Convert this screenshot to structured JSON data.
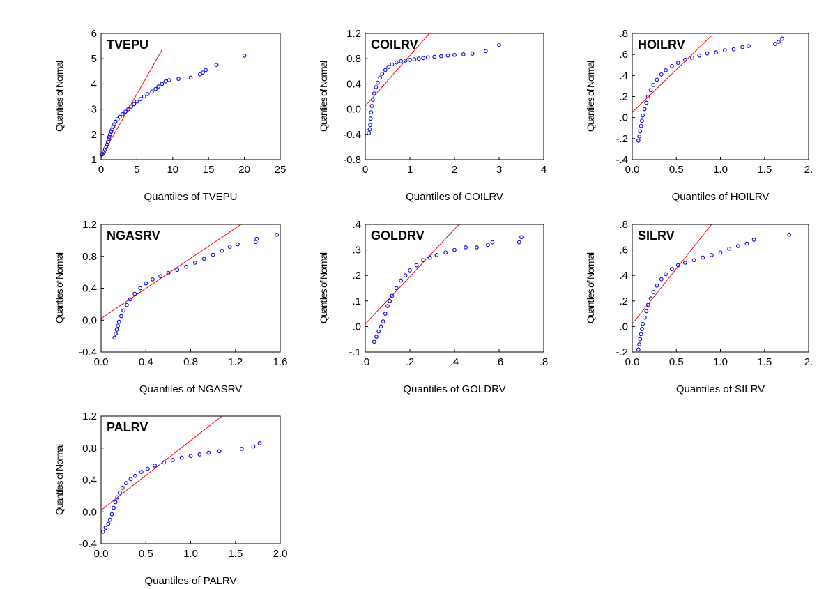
{
  "colors": {
    "points": "#1010e6",
    "ref_line": "#ff0000",
    "frame": "#000000"
  },
  "chart_data": [
    {
      "type": "scatter",
      "title": "TVEPU",
      "xlabel": "Quantiles of TVEPU",
      "ylabel": "Quantiles of Normal",
      "xlim": [
        0,
        25
      ],
      "ylim": [
        1,
        6
      ],
      "xticks": [
        0,
        5,
        10,
        15,
        20,
        25
      ],
      "xtick_labels": [
        "0",
        "5",
        "10",
        "15",
        "20",
        "25"
      ],
      "yticks": [
        1,
        2,
        3,
        4,
        5,
        6
      ],
      "ytick_labels": [
        "1",
        "2",
        "3",
        "4",
        "5",
        "6"
      ],
      "ref_line": [
        [
          0,
          1.1
        ],
        [
          8.5,
          5.35
        ]
      ],
      "points": [
        [
          0.05,
          1.2
        ],
        [
          0.2,
          1.22
        ],
        [
          0.4,
          1.3
        ],
        [
          0.55,
          1.4
        ],
        [
          0.7,
          1.5
        ],
        [
          0.85,
          1.6
        ],
        [
          0.95,
          1.7
        ],
        [
          1.05,
          1.8
        ],
        [
          1.15,
          1.9
        ],
        [
          1.25,
          2.0
        ],
        [
          1.4,
          2.1
        ],
        [
          1.55,
          2.2
        ],
        [
          1.7,
          2.3
        ],
        [
          1.85,
          2.4
        ],
        [
          2.0,
          2.5
        ],
        [
          2.3,
          2.6
        ],
        [
          2.6,
          2.7
        ],
        [
          3.0,
          2.8
        ],
        [
          3.4,
          2.9
        ],
        [
          3.8,
          3.0
        ],
        [
          4.2,
          3.1
        ],
        [
          4.6,
          3.2
        ],
        [
          5.0,
          3.3
        ],
        [
          5.5,
          3.4
        ],
        [
          6.0,
          3.5
        ],
        [
          6.5,
          3.6
        ],
        [
          7.1,
          3.7
        ],
        [
          7.6,
          3.8
        ],
        [
          8.0,
          3.9
        ],
        [
          8.5,
          4.0
        ],
        [
          9.0,
          4.1
        ],
        [
          9.5,
          4.15
        ],
        [
          10.8,
          4.2
        ],
        [
          12.5,
          4.25
        ],
        [
          13.8,
          4.38
        ],
        [
          14.2,
          4.45
        ],
        [
          14.6,
          4.55
        ],
        [
          16.1,
          4.75
        ],
        [
          20.0,
          5.12
        ]
      ]
    },
    {
      "type": "scatter",
      "title": "COILRV",
      "xlabel": "Quantiles of COILRV",
      "ylabel": "Quantiles of Normal",
      "xlim": [
        0,
        4
      ],
      "ylim": [
        -0.8,
        1.2
      ],
      "xticks": [
        0,
        1,
        2,
        3,
        4
      ],
      "xtick_labels": [
        "0",
        "1",
        "2",
        "3",
        "4"
      ],
      "yticks": [
        -0.8,
        -0.4,
        0.0,
        0.4,
        0.8,
        1.2
      ],
      "ytick_labels": [
        "-0.8",
        "-0.4",
        "0.0",
        "0.4",
        "0.8",
        "1.2"
      ],
      "ref_line": [
        [
          0,
          0.05
        ],
        [
          1.5,
          1.25
        ]
      ],
      "points": [
        [
          0.08,
          -0.38
        ],
        [
          0.1,
          -0.32
        ],
        [
          0.11,
          -0.25
        ],
        [
          0.12,
          -0.15
        ],
        [
          0.13,
          -0.05
        ],
        [
          0.15,
          0.05
        ],
        [
          0.17,
          0.15
        ],
        [
          0.2,
          0.25
        ],
        [
          0.24,
          0.35
        ],
        [
          0.28,
          0.42
        ],
        [
          0.33,
          0.5
        ],
        [
          0.38,
          0.56
        ],
        [
          0.45,
          0.62
        ],
        [
          0.52,
          0.67
        ],
        [
          0.6,
          0.71
        ],
        [
          0.7,
          0.74
        ],
        [
          0.8,
          0.76
        ],
        [
          0.9,
          0.77
        ],
        [
          1.0,
          0.78
        ],
        [
          1.1,
          0.79
        ],
        [
          1.2,
          0.8
        ],
        [
          1.3,
          0.81
        ],
        [
          1.4,
          0.82
        ],
        [
          1.55,
          0.83
        ],
        [
          1.7,
          0.84
        ],
        [
          1.85,
          0.85
        ],
        [
          2.0,
          0.86
        ],
        [
          2.2,
          0.87
        ],
        [
          2.4,
          0.88
        ],
        [
          2.7,
          0.92
        ],
        [
          3.0,
          1.02
        ]
      ]
    },
    {
      "type": "scatter",
      "title": "HOILRV",
      "xlabel": "Quantiles of HOILRV",
      "ylabel": "Quantiles of Normal",
      "xlim": [
        0,
        2
      ],
      "ylim": [
        -0.4,
        0.8
      ],
      "xticks": [
        0,
        0.5,
        1.0,
        1.5,
        2.0
      ],
      "xtick_labels": [
        "0.0",
        "0.5",
        "1.0",
        "1.5",
        "2."
      ],
      "yticks": [
        -0.4,
        -0.2,
        0.0,
        0.2,
        0.4,
        0.6,
        0.8
      ],
      "ytick_labels": [
        "-.4",
        "-.2",
        ".0",
        ".2",
        ".4",
        ".6",
        ".8"
      ],
      "ref_line": [
        [
          0,
          0.05
        ],
        [
          0.9,
          0.78
        ]
      ],
      "points": [
        [
          0.07,
          -0.22
        ],
        [
          0.08,
          -0.18
        ],
        [
          0.09,
          -0.13
        ],
        [
          0.1,
          -0.08
        ],
        [
          0.11,
          -0.03
        ],
        [
          0.12,
          0.02
        ],
        [
          0.14,
          0.08
        ],
        [
          0.16,
          0.14
        ],
        [
          0.18,
          0.2
        ],
        [
          0.21,
          0.26
        ],
        [
          0.24,
          0.31
        ],
        [
          0.28,
          0.36
        ],
        [
          0.33,
          0.41
        ],
        [
          0.38,
          0.45
        ],
        [
          0.45,
          0.49
        ],
        [
          0.52,
          0.52
        ],
        [
          0.6,
          0.55
        ],
        [
          0.68,
          0.57
        ],
        [
          0.76,
          0.59
        ],
        [
          0.85,
          0.61
        ],
        [
          0.95,
          0.62
        ],
        [
          1.05,
          0.64
        ],
        [
          1.15,
          0.65
        ],
        [
          1.25,
          0.67
        ],
        [
          1.32,
          0.68
        ],
        [
          1.62,
          0.7
        ],
        [
          1.66,
          0.72
        ],
        [
          1.7,
          0.75
        ]
      ]
    },
    {
      "type": "scatter",
      "title": "NGASRV",
      "xlabel": "Quantiles of NGASRV",
      "ylabel": "Quantiles of Normal",
      "xlim": [
        0,
        1.6
      ],
      "ylim": [
        -0.4,
        1.2
      ],
      "xticks": [
        0,
        0.4,
        0.8,
        1.2,
        1.6
      ],
      "xtick_labels": [
        "0.0",
        "0.4",
        "0.8",
        "1.2",
        "1.6"
      ],
      "yticks": [
        -0.4,
        0.0,
        0.4,
        0.8,
        1.2
      ],
      "ytick_labels": [
        "-0.4",
        "0.0",
        "0.4",
        "0.8",
        "1.2"
      ],
      "ref_line": [
        [
          0,
          0.02
        ],
        [
          1.25,
          1.2
        ]
      ],
      "points": [
        [
          0.12,
          -0.22
        ],
        [
          0.13,
          -0.17
        ],
        [
          0.14,
          -0.12
        ],
        [
          0.15,
          -0.07
        ],
        [
          0.16,
          -0.02
        ],
        [
          0.18,
          0.05
        ],
        [
          0.2,
          0.12
        ],
        [
          0.23,
          0.19
        ],
        [
          0.26,
          0.26
        ],
        [
          0.3,
          0.33
        ],
        [
          0.35,
          0.4
        ],
        [
          0.4,
          0.46
        ],
        [
          0.46,
          0.51
        ],
        [
          0.53,
          0.55
        ],
        [
          0.6,
          0.59
        ],
        [
          0.68,
          0.63
        ],
        [
          0.76,
          0.67
        ],
        [
          0.84,
          0.72
        ],
        [
          0.92,
          0.77
        ],
        [
          1.0,
          0.82
        ],
        [
          1.08,
          0.87
        ],
        [
          1.15,
          0.92
        ],
        [
          1.22,
          0.95
        ],
        [
          1.38,
          0.98
        ],
        [
          1.39,
          1.02
        ],
        [
          1.57,
          1.07
        ]
      ]
    },
    {
      "type": "scatter",
      "title": "GOLDRV",
      "xlabel": "Quantiles of GOLDRV",
      "ylabel": "Quantiles of Normal",
      "xlim": [
        0,
        0.8
      ],
      "ylim": [
        -0.1,
        0.4
      ],
      "xticks": [
        0,
        0.2,
        0.4,
        0.6,
        0.8
      ],
      "xtick_labels": [
        ".0",
        ".2",
        ".4",
        ".6",
        ".8"
      ],
      "yticks": [
        -0.1,
        0.0,
        0.1,
        0.2,
        0.3,
        0.4
      ],
      "ytick_labels": [
        "-.1",
        ".0",
        ".1",
        ".2",
        ".3",
        ".4"
      ],
      "ref_line": [
        [
          0,
          0.01
        ],
        [
          0.42,
          0.4
        ]
      ],
      "points": [
        [
          0.04,
          -0.06
        ],
        [
          0.05,
          -0.04
        ],
        [
          0.06,
          -0.02
        ],
        [
          0.07,
          0.0
        ],
        [
          0.08,
          0.02
        ],
        [
          0.09,
          0.05
        ],
        [
          0.1,
          0.08
        ],
        [
          0.11,
          0.1
        ],
        [
          0.12,
          0.12
        ],
        [
          0.14,
          0.15
        ],
        [
          0.16,
          0.18
        ],
        [
          0.18,
          0.2
        ],
        [
          0.2,
          0.22
        ],
        [
          0.23,
          0.24
        ],
        [
          0.26,
          0.26
        ],
        [
          0.29,
          0.27
        ],
        [
          0.32,
          0.28
        ],
        [
          0.36,
          0.29
        ],
        [
          0.4,
          0.3
        ],
        [
          0.45,
          0.31
        ],
        [
          0.5,
          0.31
        ],
        [
          0.55,
          0.32
        ],
        [
          0.57,
          0.33
        ],
        [
          0.69,
          0.33
        ],
        [
          0.7,
          0.35
        ]
      ]
    },
    {
      "type": "scatter",
      "title": "SILRV",
      "xlabel": "Quantiles of SILRV",
      "ylabel": "Quantiles of Normal",
      "xlim": [
        0,
        2
      ],
      "ylim": [
        -0.2,
        0.8
      ],
      "xticks": [
        0,
        0.5,
        1.0,
        1.5,
        2.0
      ],
      "xtick_labels": [
        "0.0",
        "0.5",
        "1.0",
        "1.5",
        "2."
      ],
      "yticks": [
        -0.2,
        0.0,
        0.2,
        0.4,
        0.6,
        0.8
      ],
      "ytick_labels": [
        "-.2",
        ".0",
        ".2",
        ".4",
        ".6",
        ".8"
      ],
      "ref_line": [
        [
          0,
          0.02
        ],
        [
          0.9,
          0.8
        ]
      ],
      "points": [
        [
          0.07,
          -0.18
        ],
        [
          0.08,
          -0.14
        ],
        [
          0.09,
          -0.1
        ],
        [
          0.1,
          -0.06
        ],
        [
          0.11,
          -0.02
        ],
        [
          0.12,
          0.02
        ],
        [
          0.14,
          0.07
        ],
        [
          0.16,
          0.12
        ],
        [
          0.18,
          0.17
        ],
        [
          0.21,
          0.22
        ],
        [
          0.24,
          0.27
        ],
        [
          0.28,
          0.32
        ],
        [
          0.33,
          0.37
        ],
        [
          0.38,
          0.41
        ],
        [
          0.45,
          0.45
        ],
        [
          0.52,
          0.48
        ],
        [
          0.6,
          0.5
        ],
        [
          0.7,
          0.52
        ],
        [
          0.8,
          0.54
        ],
        [
          0.9,
          0.56
        ],
        [
          1.0,
          0.58
        ],
        [
          1.1,
          0.61
        ],
        [
          1.2,
          0.63
        ],
        [
          1.3,
          0.65
        ],
        [
          1.38,
          0.68
        ],
        [
          1.78,
          0.72
        ]
      ]
    },
    {
      "type": "scatter",
      "title": "PALRV",
      "xlabel": "Quantiles of PALRV",
      "ylabel": "Quantiles of Normal",
      "xlim": [
        0,
        2
      ],
      "ylim": [
        -0.4,
        1.2
      ],
      "xticks": [
        0,
        0.5,
        1.0,
        1.5,
        2.0
      ],
      "xtick_labels": [
        "0.0",
        "0.5",
        "1.0",
        "1.5",
        "2.0"
      ],
      "yticks": [
        -0.4,
        0.0,
        0.4,
        0.8,
        1.2
      ],
      "ytick_labels": [
        "-0.4",
        "0.0",
        "0.4",
        "0.8",
        "1.2"
      ],
      "ref_line": [
        [
          0,
          0.02
        ],
        [
          1.35,
          1.2
        ]
      ],
      "points": [
        [
          0.02,
          -0.25
        ],
        [
          0.05,
          -0.2
        ],
        [
          0.08,
          -0.15
        ],
        [
          0.1,
          -0.1
        ],
        [
          0.12,
          -0.03
        ],
        [
          0.14,
          0.05
        ],
        [
          0.16,
          0.12
        ],
        [
          0.18,
          0.18
        ],
        [
          0.21,
          0.24
        ],
        [
          0.24,
          0.3
        ],
        [
          0.28,
          0.36
        ],
        [
          0.33,
          0.41
        ],
        [
          0.38,
          0.45
        ],
        [
          0.45,
          0.5
        ],
        [
          0.52,
          0.54
        ],
        [
          0.6,
          0.58
        ],
        [
          0.7,
          0.62
        ],
        [
          0.8,
          0.65
        ],
        [
          0.9,
          0.68
        ],
        [
          1.0,
          0.7
        ],
        [
          1.1,
          0.72
        ],
        [
          1.2,
          0.74
        ],
        [
          1.32,
          0.76
        ],
        [
          1.57,
          0.79
        ],
        [
          1.7,
          0.82
        ],
        [
          1.77,
          0.86
        ]
      ]
    }
  ]
}
